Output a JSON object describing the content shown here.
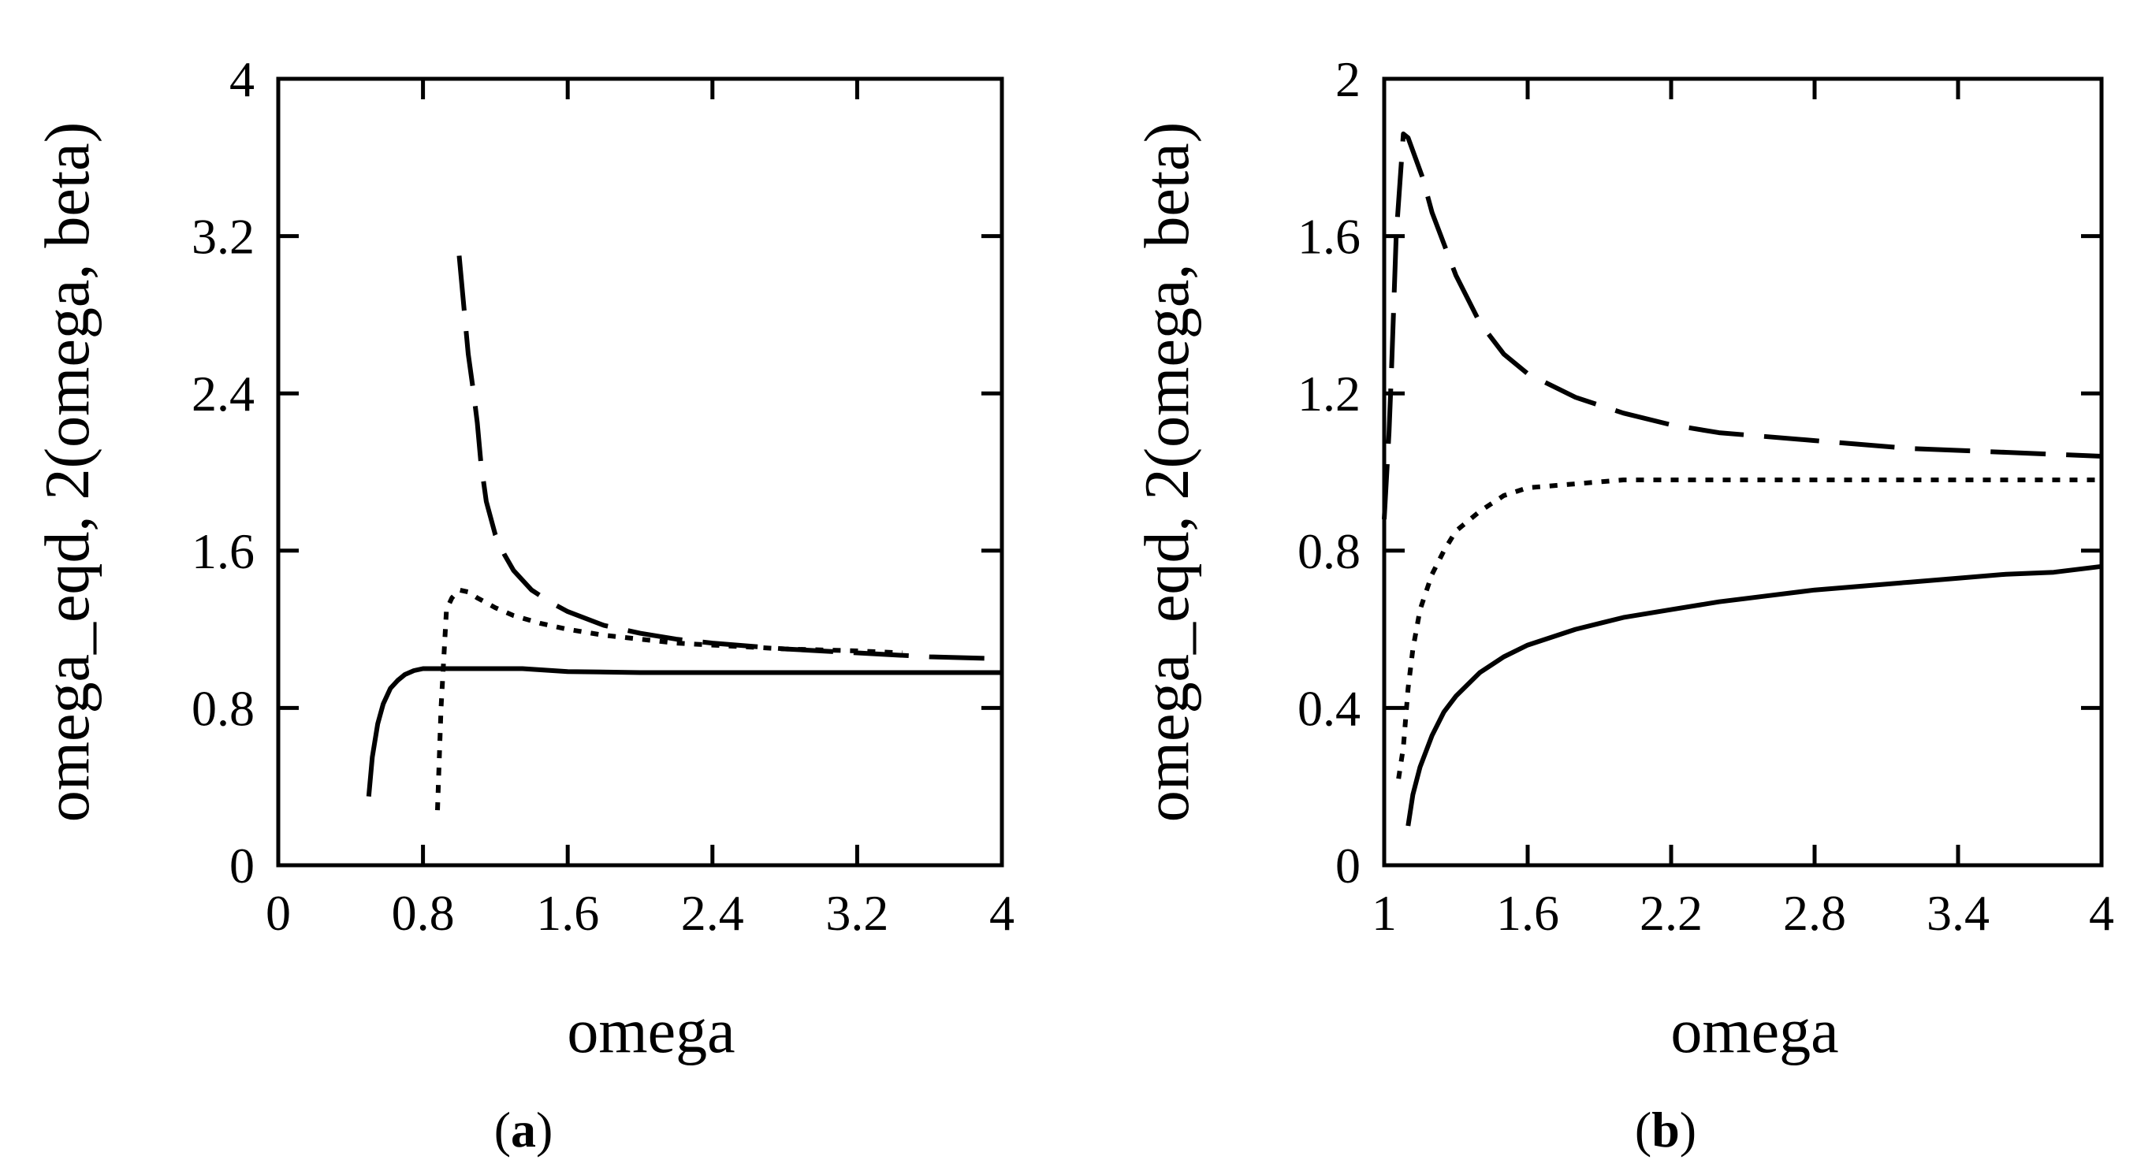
{
  "chart_data": [
    {
      "type": "line",
      "panel_label": "a",
      "panel_label_open": "(",
      "panel_label_close": ")",
      "xlabel": "omega",
      "ylabel": "omega_eqd, 2(omega, beta)",
      "xlim": [
        0,
        4
      ],
      "ylim": [
        0,
        4
      ],
      "xticks": [
        "0",
        "0.8",
        "1.6",
        "2.4",
        "3.2",
        "4"
      ],
      "yticks": [
        "0",
        "0.8",
        "1.6",
        "2.4",
        "3.2",
        "4"
      ],
      "grid": false,
      "series": [
        {
          "name": "solid",
          "style": "solid",
          "x": [
            0.5,
            0.52,
            0.55,
            0.58,
            0.62,
            0.66,
            0.7,
            0.75,
            0.8,
            0.9,
            1.0,
            1.2,
            1.35,
            1.6,
            2.0,
            2.4,
            2.8,
            3.2,
            3.6,
            4.0
          ],
          "y": [
            0.35,
            0.55,
            0.72,
            0.82,
            0.9,
            0.94,
            0.97,
            0.99,
            1.0,
            1.0,
            1.0,
            1.0,
            1.0,
            0.985,
            0.98,
            0.98,
            0.98,
            0.98,
            0.98,
            0.98
          ]
        },
        {
          "name": "dotted",
          "style": "dotted",
          "x": [
            0.88,
            0.9,
            0.93,
            0.96,
            1.0,
            1.05,
            1.1,
            1.2,
            1.3,
            1.45,
            1.6,
            1.8,
            2.0,
            2.2,
            2.4,
            2.8,
            3.2,
            3.45
          ],
          "y": [
            0.28,
            0.8,
            1.3,
            1.36,
            1.4,
            1.39,
            1.36,
            1.31,
            1.27,
            1.23,
            1.2,
            1.17,
            1.15,
            1.13,
            1.12,
            1.1,
            1.09,
            1.08
          ]
        },
        {
          "name": "dashed",
          "style": "dashed",
          "x": [
            1.0,
            1.02,
            1.05,
            1.08,
            1.1,
            1.12,
            1.15,
            1.2,
            1.25,
            1.3,
            1.4,
            1.5,
            1.6,
            1.8,
            2.0,
            2.2,
            2.4,
            2.8,
            3.2,
            3.6,
            4.0
          ],
          "y": [
            3.1,
            2.9,
            2.6,
            2.4,
            2.25,
            2.05,
            1.85,
            1.68,
            1.58,
            1.5,
            1.4,
            1.34,
            1.29,
            1.22,
            1.18,
            1.15,
            1.13,
            1.1,
            1.08,
            1.06,
            1.05
          ]
        }
      ]
    },
    {
      "type": "line",
      "panel_label": "b",
      "panel_label_open": "(",
      "panel_label_close": ")",
      "xlabel": "omega",
      "ylabel": "omega_eqd, 2(omega, beta)",
      "xlim": [
        1,
        4
      ],
      "ylim": [
        0,
        2
      ],
      "xticks": [
        "1",
        "1.6",
        "2.2",
        "2.8",
        "3.4",
        "4"
      ],
      "yticks": [
        "0",
        "0.4",
        "0.8",
        "1.2",
        "1.6",
        "2"
      ],
      "grid": false,
      "series": [
        {
          "name": "solid",
          "style": "solid",
          "x": [
            1.1,
            1.12,
            1.15,
            1.2,
            1.25,
            1.3,
            1.4,
            1.5,
            1.6,
            1.8,
            2.0,
            2.2,
            2.4,
            2.6,
            2.8,
            3.0,
            3.2,
            3.4,
            3.6,
            3.8,
            4.0
          ],
          "y": [
            0.1,
            0.18,
            0.25,
            0.33,
            0.39,
            0.43,
            0.49,
            0.53,
            0.56,
            0.6,
            0.63,
            0.65,
            0.67,
            0.685,
            0.7,
            0.71,
            0.72,
            0.73,
            0.74,
            0.745,
            0.76
          ]
        },
        {
          "name": "dotted",
          "style": "dotted",
          "x": [
            1.06,
            1.08,
            1.1,
            1.12,
            1.15,
            1.2,
            1.25,
            1.3,
            1.4,
            1.5,
            1.6,
            1.8,
            2.0,
            2.4,
            2.8,
            3.2,
            3.6,
            4.0
          ],
          "y": [
            0.22,
            0.3,
            0.45,
            0.55,
            0.65,
            0.74,
            0.8,
            0.85,
            0.9,
            0.94,
            0.96,
            0.97,
            0.98,
            0.98,
            0.98,
            0.98,
            0.98,
            0.98
          ]
        },
        {
          "name": "dashed",
          "style": "dashed",
          "x": [
            1.0,
            1.02,
            1.03,
            1.05,
            1.08,
            1.1,
            1.13,
            1.16,
            1.2,
            1.3,
            1.4,
            1.5,
            1.6,
            1.8,
            2.0,
            2.2,
            2.4,
            2.8,
            3.2,
            3.6,
            4.0
          ],
          "y": [
            0.88,
            1.1,
            1.25,
            1.6,
            1.86,
            1.85,
            1.8,
            1.75,
            1.66,
            1.5,
            1.38,
            1.3,
            1.25,
            1.19,
            1.15,
            1.12,
            1.1,
            1.08,
            1.06,
            1.05,
            1.04
          ]
        }
      ]
    }
  ]
}
